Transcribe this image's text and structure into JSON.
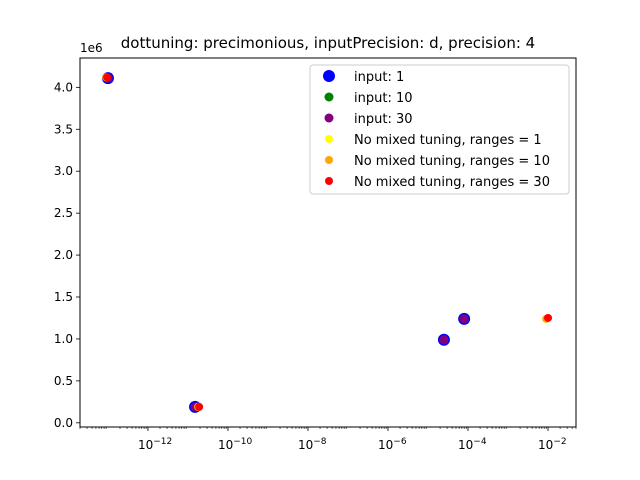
{
  "chart_data": {
    "type": "scatter",
    "title": "dottuning: precimonious, inputPrecision: d, precision: 4",
    "xlabel": "",
    "ylabel": "",
    "x_scale": "log",
    "y_offset_label": "1e6",
    "xlim": [
      2e-14,
      0.05
    ],
    "ylim": [
      -0.05,
      4.35
    ],
    "x_ticks": [
      {
        "value": 1e-12,
        "base": "10",
        "exp": "−12"
      },
      {
        "value": 1e-10,
        "base": "10",
        "exp": "−10"
      },
      {
        "value": 1e-08,
        "base": "10",
        "exp": "−8"
      },
      {
        "value": 1e-06,
        "base": "10",
        "exp": "−6"
      },
      {
        "value": 0.0001,
        "base": "10",
        "exp": "−4"
      },
      {
        "value": 0.01,
        "base": "10",
        "exp": "−2"
      }
    ],
    "y_ticks": [
      {
        "value": 0.0,
        "label": "0.0"
      },
      {
        "value": 0.5,
        "label": "0.5"
      },
      {
        "value": 1.0,
        "label": "1.0"
      },
      {
        "value": 1.5,
        "label": "1.5"
      },
      {
        "value": 2.0,
        "label": "2.0"
      },
      {
        "value": 2.5,
        "label": "2.5"
      },
      {
        "value": 3.0,
        "label": "3.0"
      },
      {
        "value": 3.5,
        "label": "3.5"
      },
      {
        "value": 4.0,
        "label": "4.0"
      }
    ],
    "legend_position": "top-right",
    "grid": false,
    "series": [
      {
        "name": "input: 1",
        "color": "#0000ff",
        "marker": "large",
        "points": [
          [
            1e-13,
            4.11
          ],
          [
            1.5e-11,
            0.19
          ],
          [
            2.5e-05,
            0.99
          ],
          [
            8e-05,
            1.24
          ]
        ]
      },
      {
        "name": "input: 10",
        "color": "#008000",
        "marker": "medium",
        "points": [
          [
            1e-13,
            4.11
          ],
          [
            1.5e-11,
            0.19
          ],
          [
            2.5e-05,
            0.99
          ],
          [
            8e-05,
            1.24
          ]
        ]
      },
      {
        "name": "input: 30",
        "color": "#800080",
        "marker": "medium",
        "points": [
          [
            1e-13,
            4.11
          ],
          [
            1.5e-11,
            0.19
          ],
          [
            2.5e-05,
            0.99
          ],
          [
            8e-05,
            1.24
          ]
        ]
      },
      {
        "name": "No mixed tuning, ranges = 1",
        "color": "#ffff00",
        "marker": "small",
        "points": [
          [
            9e-14,
            4.12
          ],
          [
            1.8e-11,
            0.19
          ],
          [
            0.009,
            1.24
          ]
        ]
      },
      {
        "name": "No mixed tuning, ranges = 10",
        "color": "#ffa500",
        "marker": "small",
        "points": [
          [
            9e-14,
            4.12
          ],
          [
            1.8e-11,
            0.19
          ],
          [
            0.009,
            1.24
          ]
        ]
      },
      {
        "name": "No mixed tuning, ranges = 30",
        "color": "#ff0000",
        "marker": "small",
        "points": [
          [
            9.5e-14,
            4.12
          ],
          [
            1.9e-11,
            0.19
          ],
          [
            0.01,
            1.25
          ]
        ]
      }
    ]
  }
}
